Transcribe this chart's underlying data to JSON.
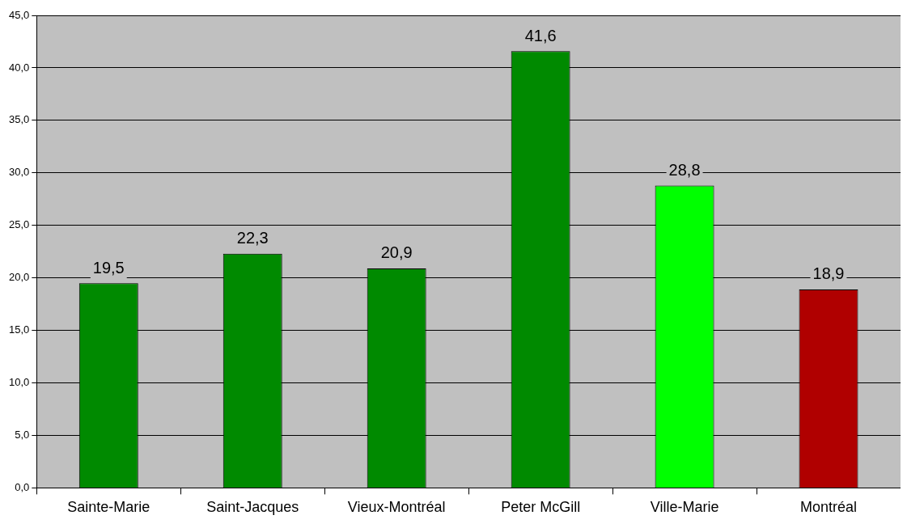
{
  "chart_data": {
    "type": "bar",
    "categories": [
      "Sainte-Marie",
      "Saint-Jacques",
      "Vieux-Montréal",
      "Peter McGill",
      "Ville-Marie",
      "Montréal"
    ],
    "values": [
      19.5,
      22.3,
      20.9,
      41.6,
      28.8,
      18.9
    ],
    "value_labels": [
      "19,5",
      "22,3",
      "20,9",
      "41,6",
      "28,8",
      "18,9"
    ],
    "colors": [
      "#008a00",
      "#008a00",
      "#008a00",
      "#008a00",
      "#00ff00",
      "#b00000"
    ],
    "ylim": [
      0,
      45
    ],
    "yticks": [
      {
        "value": 0,
        "label": "0,0"
      },
      {
        "value": 5,
        "label": "5,0"
      },
      {
        "value": 10,
        "label": "10,0"
      },
      {
        "value": 15,
        "label": "15,0"
      },
      {
        "value": 20,
        "label": "20,0"
      },
      {
        "value": 25,
        "label": "25,0"
      },
      {
        "value": 30,
        "label": "30,0"
      },
      {
        "value": 35,
        "label": "35,0"
      },
      {
        "value": 40,
        "label": "40,0"
      },
      {
        "value": 45,
        "label": "45,0"
      }
    ],
    "grid": "y",
    "legend": false
  }
}
